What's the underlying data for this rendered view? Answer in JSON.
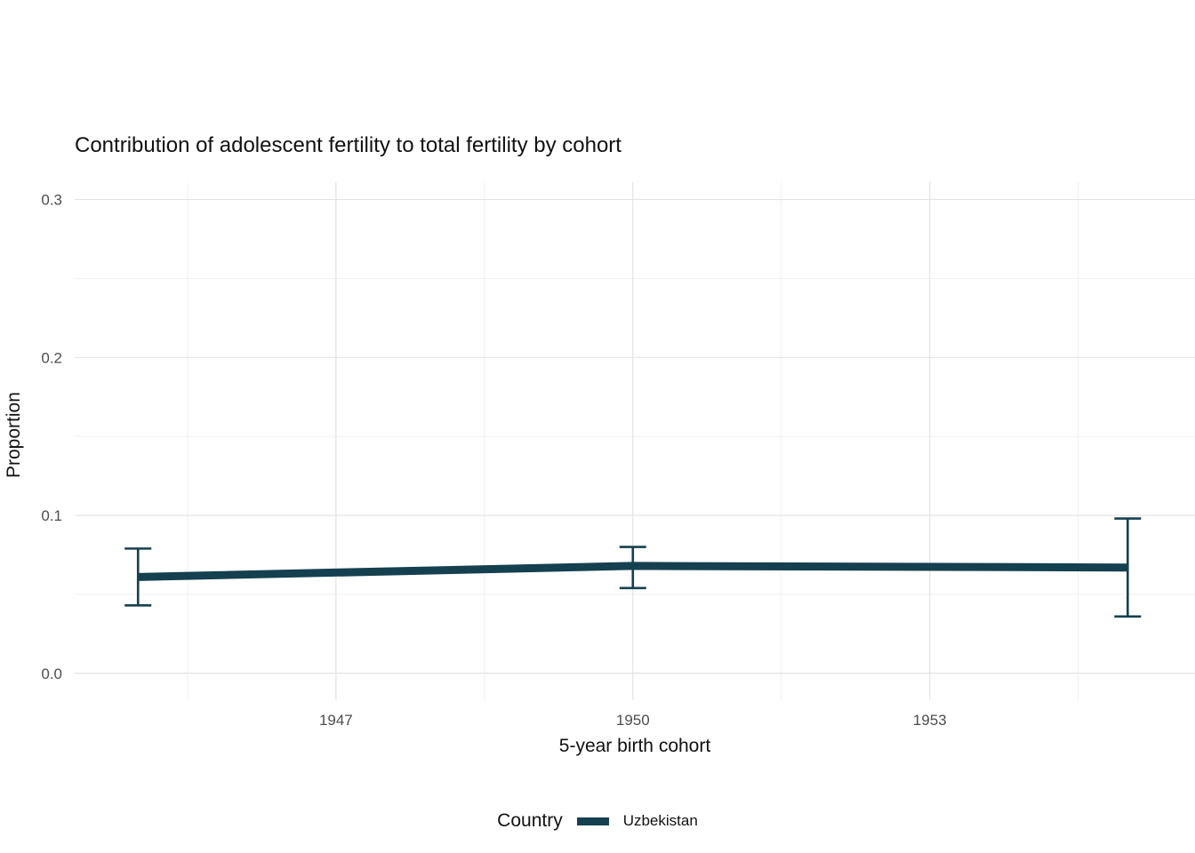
{
  "chart_data": {
    "type": "line",
    "title": "Contribution of adolescent fertility to total fertility by cohort",
    "xlabel": "5-year birth cohort",
    "ylabel": "Proportion",
    "x_ticks": [
      {
        "value": 1947,
        "label": "1947"
      },
      {
        "value": 1950,
        "label": "1950"
      },
      {
        "value": 1953,
        "label": "1953"
      }
    ],
    "y_ticks": [
      {
        "value": 0.0,
        "label": "0.0"
      },
      {
        "value": 0.1,
        "label": "0.1"
      },
      {
        "value": 0.2,
        "label": "0.2"
      },
      {
        "value": 0.3,
        "label": "0.3"
      }
    ],
    "xlim": [
      1944.36,
      1955.68
    ],
    "ylim": [
      -0.017,
      0.311
    ],
    "grid": true,
    "legend_position": "bottom",
    "colors": {
      "line": "#15404f",
      "grid_major": "#e3e3e3",
      "grid_minor": "#f0f0f0",
      "tick_text": "#4d4d4d"
    },
    "legend": {
      "title": "Country",
      "entries": [
        {
          "label": "Uzbekistan",
          "color": "#15404f"
        }
      ]
    },
    "series": [
      {
        "name": "Uzbekistan",
        "color": "#15404f",
        "x": [
          1945,
          1950,
          1955
        ],
        "y": [
          0.061,
          0.068,
          0.067
        ],
        "ymin": [
          0.043,
          0.054,
          0.036
        ],
        "ymax": [
          0.079,
          0.08,
          0.098
        ]
      }
    ]
  }
}
